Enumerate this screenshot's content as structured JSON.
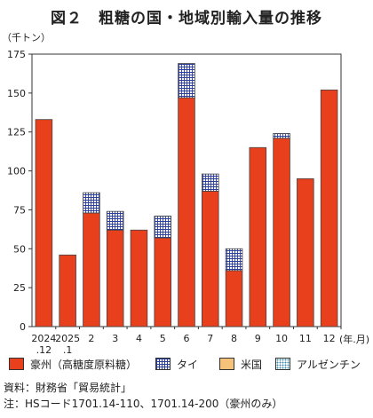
{
  "chart_data": {
    "type": "bar",
    "stacked": true,
    "title": "図２　粗糖の国・地域別輸入量の推移",
    "ylabel": "（千トン）",
    "xlabel": "(年.月)",
    "ylim": [
      0,
      175
    ],
    "yticks": [
      "0",
      "25",
      "50",
      "75",
      "100",
      "125",
      "150",
      "175"
    ],
    "categories": [
      {
        "top": "2024",
        "bottom": ".12"
      },
      {
        "top": "2025",
        "bottom": ".1"
      },
      {
        "top": "2",
        "bottom": ""
      },
      {
        "top": "3",
        "bottom": ""
      },
      {
        "top": "4",
        "bottom": ""
      },
      {
        "top": "5",
        "bottom": ""
      },
      {
        "top": "6",
        "bottom": ""
      },
      {
        "top": "7",
        "bottom": ""
      },
      {
        "top": "8",
        "bottom": ""
      },
      {
        "top": "9",
        "bottom": ""
      },
      {
        "top": "10",
        "bottom": ""
      },
      {
        "top": "11",
        "bottom": ""
      },
      {
        "top": "12",
        "bottom": ""
      }
    ],
    "series": [
      {
        "name": "豪州（高糖度原料糖）",
        "key": "aus",
        "color": "#e8401c",
        "values": [
          133,
          46,
          73,
          62,
          62,
          57,
          147,
          87,
          36,
          115,
          121,
          95,
          152
        ]
      },
      {
        "name": "タイ",
        "key": "thai",
        "color": "#2b3e9e",
        "values": [
          0,
          0,
          13,
          12,
          0,
          14,
          22,
          11,
          14,
          0,
          3,
          0,
          0
        ]
      },
      {
        "name": "米国",
        "key": "us",
        "color": "#f6c27a",
        "values": [
          0,
          0,
          0,
          0,
          0,
          0,
          0,
          0,
          0,
          0,
          0,
          0,
          0
        ]
      },
      {
        "name": "アルゼンチン",
        "key": "arg",
        "color": "#3a8fb0",
        "values": [
          0,
          0,
          0,
          0,
          0,
          0,
          0,
          0,
          0,
          0,
          0,
          0,
          0
        ]
      }
    ],
    "grid": false,
    "legend_position": "bottom"
  },
  "notes": {
    "source": "資料：財務省「貿易統計」",
    "note": "注：HSコード1701.14-110、1701.14-200（豪州のみ）"
  }
}
